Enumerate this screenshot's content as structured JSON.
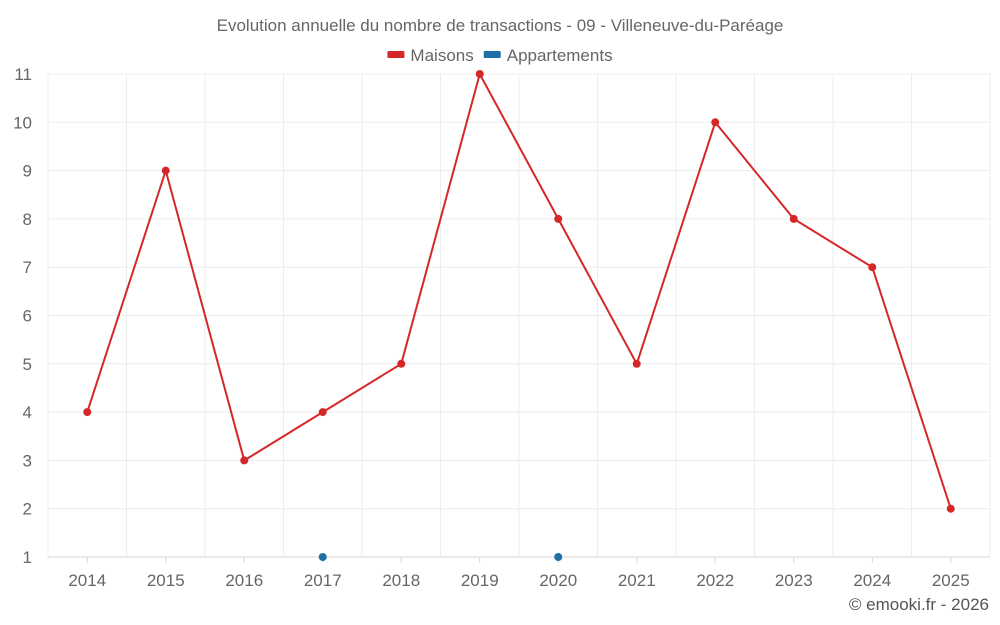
{
  "chart_data": {
    "type": "line",
    "title": "Evolution annuelle du nombre de transactions - 09 - Villeneuve-du-Paréage",
    "categories": [
      "2014",
      "2015",
      "2016",
      "2017",
      "2018",
      "2019",
      "2020",
      "2021",
      "2022",
      "2023",
      "2024",
      "2025"
    ],
    "series": [
      {
        "name": "Maisons",
        "color": "#d62728",
        "values": [
          4,
          9,
          3,
          4,
          5,
          11,
          8,
          5,
          10,
          8,
          7,
          2
        ]
      },
      {
        "name": "Appartements",
        "color": "#1f6fa5",
        "values": [
          null,
          null,
          null,
          1,
          null,
          null,
          1,
          null,
          null,
          null,
          null,
          null
        ]
      }
    ],
    "ylim": [
      1,
      11
    ],
    "yticks": [
      "1",
      "2",
      "3",
      "4",
      "5",
      "6",
      "7",
      "8",
      "9",
      "10",
      "11"
    ],
    "xlabel": "",
    "ylabel": "",
    "grid": true,
    "legend": "top-center"
  },
  "credit": "© emooki.fr - 2026"
}
